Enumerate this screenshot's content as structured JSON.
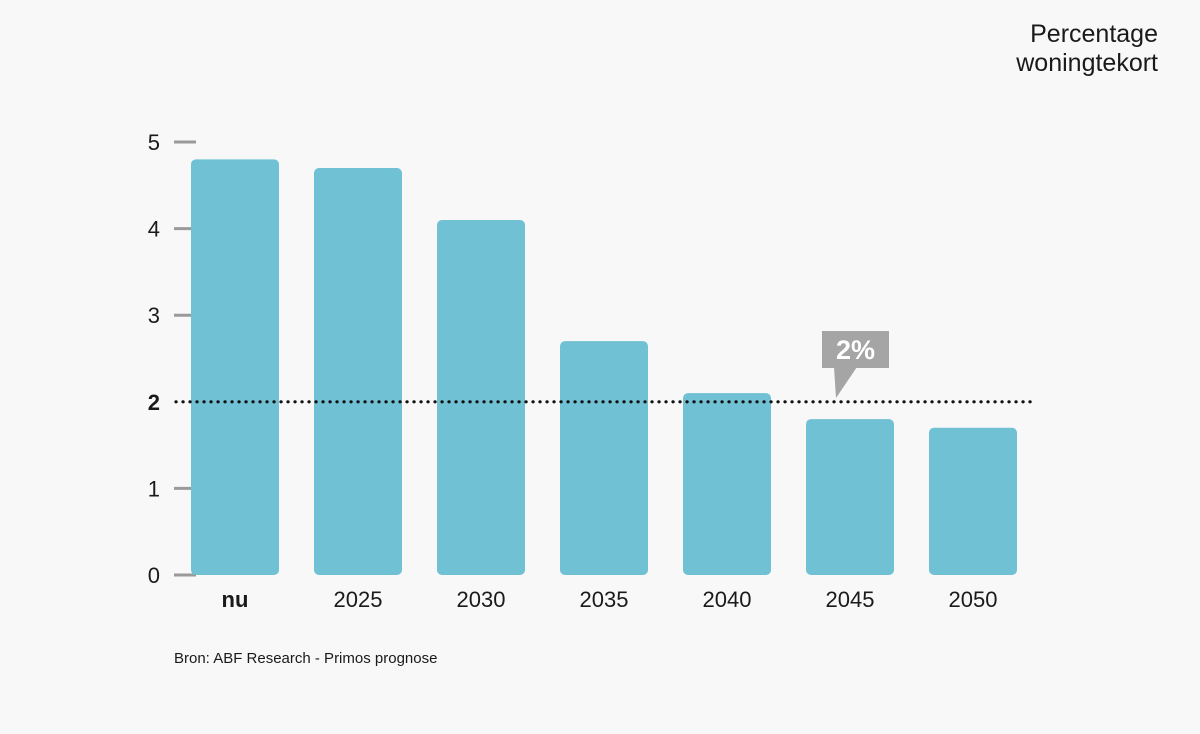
{
  "chart_data": {
    "type": "bar",
    "title": [
      "Percentage",
      "woningtekort"
    ],
    "categories": [
      "nu",
      "2025",
      "2030",
      "2035",
      "2040",
      "2045",
      "2050"
    ],
    "values": [
      4.8,
      4.7,
      4.1,
      2.7,
      2.1,
      1.8,
      1.7
    ],
    "ylim": [
      0,
      5
    ],
    "y_ticks": [
      0,
      1,
      2,
      3,
      4,
      5
    ],
    "reference_line": {
      "value": 2,
      "label": "2",
      "style": "dotted"
    },
    "annotation": {
      "text": "2%",
      "near_category": "2045"
    },
    "source": "Bron: ABF Research - Primos prognose",
    "bar_color": "#6fc1d3",
    "callout_color": "#a5a5a5",
    "tick_color": "#9a9a9a"
  }
}
